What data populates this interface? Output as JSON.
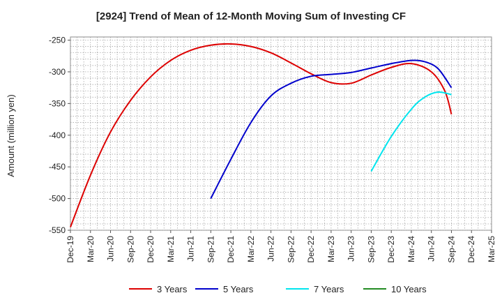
{
  "chart_data": {
    "type": "line",
    "title": "[2924]  Trend of Mean of 12-Month Moving Sum of Investing CF",
    "ylabel": "Amount (million yen)",
    "xlabel": "",
    "ylim": [
      -550,
      -245
    ],
    "yticks": [
      -250,
      -300,
      -350,
      -400,
      -450,
      -500,
      -550
    ],
    "xticks": [
      "Dec-19",
      "Mar-20",
      "Jun-20",
      "Sep-20",
      "Dec-20",
      "Mar-21",
      "Jun-21",
      "Sep-21",
      "Dec-21",
      "Mar-22",
      "Jun-22",
      "Sep-22",
      "Dec-22",
      "Mar-23",
      "Jun-23",
      "Sep-23",
      "Dec-23",
      "Mar-24",
      "Jun-24",
      "Sep-24",
      "Dec-24",
      "Mar-25"
    ],
    "grid": true,
    "legend_position": "bottom",
    "series": [
      {
        "name": "3 Years",
        "color": "#dd0000",
        "points": [
          [
            "Dec-19",
            -545
          ],
          [
            "Mar-20",
            -463
          ],
          [
            "Jun-20",
            -395
          ],
          [
            "Sep-20",
            -345
          ],
          [
            "Dec-20",
            -308
          ],
          [
            "Mar-21",
            -282
          ],
          [
            "Jun-21",
            -266
          ],
          [
            "Sep-21",
            -258
          ],
          [
            "Dec-21",
            -256
          ],
          [
            "Mar-22",
            -260
          ],
          [
            "Jun-22",
            -270
          ],
          [
            "Sep-22",
            -286
          ],
          [
            "Dec-22",
            -303
          ],
          [
            "Mar-23",
            -317
          ],
          [
            "Jun-23",
            -318
          ],
          [
            "Sep-23",
            -305
          ],
          [
            "Dec-23",
            -293
          ],
          [
            "Mar-24",
            -287
          ],
          [
            "Jun-24",
            -300
          ],
          [
            "Aug-24",
            -330
          ],
          [
            "Sep-24",
            -367
          ]
        ]
      },
      {
        "name": "5 Years",
        "color": "#0000cc",
        "points": [
          [
            "Sep-21",
            -500
          ],
          [
            "Dec-21",
            -438
          ],
          [
            "Mar-22",
            -380
          ],
          [
            "Jun-22",
            -338
          ],
          [
            "Sep-22",
            -318
          ],
          [
            "Dec-22",
            -307
          ],
          [
            "Mar-23",
            -304
          ],
          [
            "Jun-23",
            -301
          ],
          [
            "Sep-23",
            -294
          ],
          [
            "Dec-23",
            -287
          ],
          [
            "Mar-24",
            -282
          ],
          [
            "May-24",
            -284
          ],
          [
            "Jul-24",
            -295
          ],
          [
            "Sep-24",
            -325
          ]
        ]
      },
      {
        "name": "7 Years",
        "color": "#00e5ee",
        "points": [
          [
            "Sep-23",
            -457
          ],
          [
            "Dec-23",
            -402
          ],
          [
            "Mar-24",
            -359
          ],
          [
            "May-24",
            -340
          ],
          [
            "Jul-24",
            -332
          ],
          [
            "Sep-24",
            -336
          ]
        ]
      },
      {
        "name": "10 Years",
        "color": "#228b22",
        "points": []
      }
    ]
  }
}
